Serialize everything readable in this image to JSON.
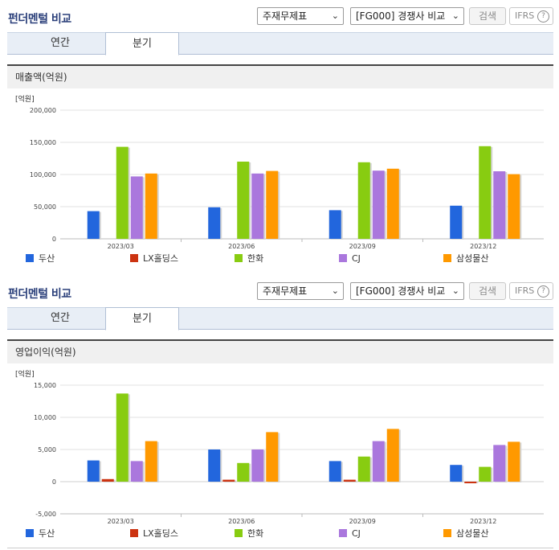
{
  "sections": [
    {
      "title": "펀더멘털 비교",
      "select1": "주재무제표",
      "select2": "[FG000] 경쟁사 비교",
      "search": "검색",
      "ifrs": "IFRS",
      "ifrs_help": "?",
      "tabs": [
        "연간",
        "분기"
      ],
      "chart_title": "매출액(억원)"
    },
    {
      "title": "펀더멘털 비교",
      "select1": "주재무제표",
      "select2": "[FG000] 경쟁사 비교",
      "search": "검색",
      "ifrs": "IFRS",
      "ifrs_help": "?",
      "tabs": [
        "연간",
        "분기"
      ],
      "chart_title": "영업이익(억원)"
    }
  ],
  "colors": {
    "두산": "#2266dd",
    "LX홀딩스": "#cc3311",
    "한화": "#88cc11",
    "CJ": "#aa77dd",
    "삼성물산": "#ff9900"
  },
  "chart_data": [
    {
      "type": "bar",
      "title": "매출액(억원)",
      "unit_label": "[억원]",
      "categories": [
        "2023/03",
        "2023/06",
        "2023/09",
        "2023/12"
      ],
      "ylim": [
        0,
        200000
      ],
      "yticks": [
        0,
        50000,
        100000,
        150000,
        200000
      ],
      "ytick_labels": [
        "0",
        "50,000",
        "100,000",
        "150,000",
        "200,000"
      ],
      "grid": true,
      "legend": "bottom",
      "series": [
        {
          "name": "두산",
          "values": [
            43000,
            49000,
            44500,
            51500
          ]
        },
        {
          "name": "LX홀딩스",
          "values": [
            0,
            0,
            0,
            0
          ]
        },
        {
          "name": "한화",
          "values": [
            143000,
            120000,
            119000,
            144000
          ]
        },
        {
          "name": "CJ",
          "values": [
            97000,
            101500,
            106000,
            105000
          ]
        },
        {
          "name": "삼성물산",
          "values": [
            101500,
            105500,
            109000,
            100500
          ]
        }
      ]
    },
    {
      "type": "bar",
      "title": "영업이익(억원)",
      "unit_label": "[억원]",
      "categories": [
        "2023/03",
        "2023/06",
        "2023/09",
        "2023/12"
      ],
      "ylim": [
        -5000,
        15000
      ],
      "yticks": [
        -5000,
        0,
        5000,
        10000,
        15000
      ],
      "ytick_labels": [
        "-5,000",
        "0",
        "5,000",
        "10,000",
        "15,000"
      ],
      "grid": true,
      "legend": "bottom",
      "series": [
        {
          "name": "두산",
          "values": [
            3300,
            5000,
            3200,
            2600
          ]
        },
        {
          "name": "LX홀딩스",
          "values": [
            400,
            300,
            300,
            -250
          ]
        },
        {
          "name": "한화",
          "values": [
            13700,
            2900,
            3900,
            2300
          ]
        },
        {
          "name": "CJ",
          "values": [
            3200,
            5000,
            6300,
            5700
          ]
        },
        {
          "name": "삼성물산",
          "values": [
            6300,
            7700,
            8200,
            6200
          ]
        }
      ]
    }
  ]
}
